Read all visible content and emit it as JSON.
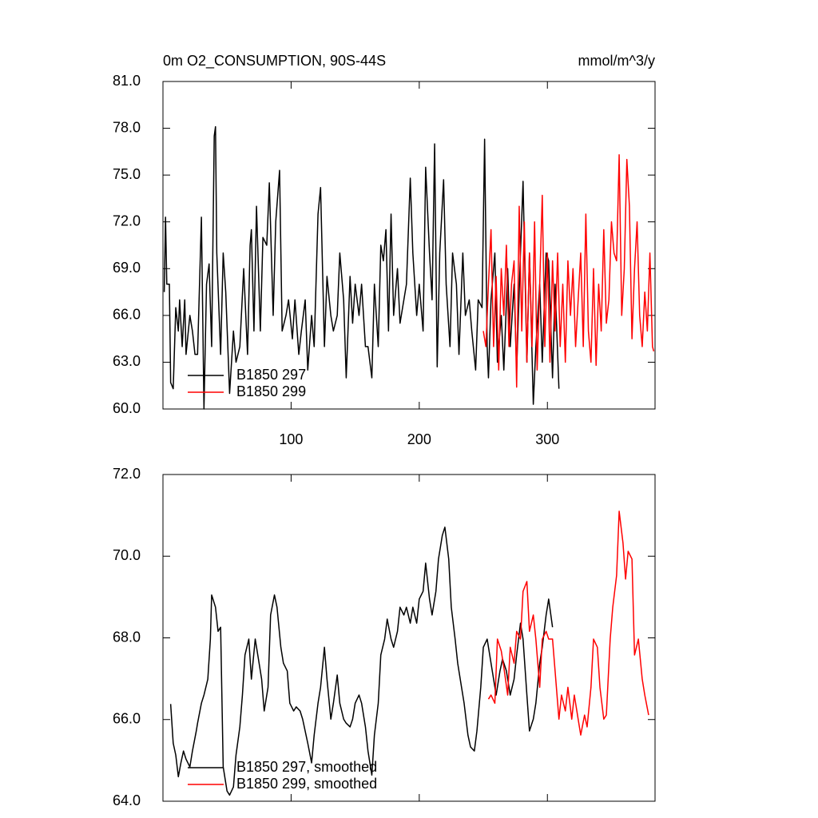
{
  "chart_data": [
    {
      "type": "line",
      "title": "0m O2_CONSUMPTION, 90S-44S",
      "units": "mmol/m^3/y",
      "xlim": [
        0,
        384
      ],
      "xticks": [
        100,
        200,
        300
      ],
      "xtick_labels": true,
      "ylim": [
        60,
        81
      ],
      "yticks": [
        {
          "value": 60,
          "label": "60.0"
        },
        {
          "value": 63,
          "label": "63.0"
        },
        {
          "value": 66,
          "label": "66.0"
        },
        {
          "value": 69,
          "label": "69.0"
        },
        {
          "value": 72,
          "label": "72.0"
        },
        {
          "value": 75,
          "label": "75.0"
        },
        {
          "value": 78,
          "label": "78.0"
        },
        {
          "value": 81,
          "label": "81.0"
        }
      ],
      "legend": "lower left",
      "series": [
        {
          "name": "B1850 297",
          "color": "#000000",
          "x": [
            1,
            2,
            3,
            5,
            6,
            8,
            10,
            12,
            13,
            15,
            17,
            18,
            21,
            23,
            25,
            27,
            30,
            32,
            34,
            36,
            38,
            40,
            41,
            42,
            45,
            47,
            49,
            52,
            55,
            57,
            60,
            63,
            66,
            68,
            69,
            71,
            73,
            76,
            78,
            81,
            83,
            86,
            88,
            91,
            93,
            96,
            98,
            101,
            103,
            106,
            108,
            111,
            113,
            116,
            118,
            121,
            123,
            126,
            128,
            131,
            133,
            136,
            138,
            141,
            143,
            146,
            148,
            150,
            153,
            155,
            158,
            160,
            163,
            165,
            168,
            170,
            172,
            174,
            176,
            178,
            180,
            183,
            185,
            188,
            190,
            193,
            195,
            198,
            200,
            203,
            205,
            208,
            210,
            212,
            214,
            216,
            219,
            221,
            224,
            226,
            229,
            231,
            234,
            236,
            239,
            241,
            244,
            246,
            249,
            251,
            253,
            254,
            256,
            259,
            261,
            264,
            266,
            269,
            271,
            274,
            276,
            279,
            281,
            284,
            286,
            289,
            291,
            294,
            296,
            299,
            301,
            304,
            306,
            309
          ],
          "values": [
            67.5,
            72.3,
            68,
            68,
            61.7,
            61.3,
            66.5,
            65,
            67,
            64,
            67,
            63.5,
            66,
            65,
            63.5,
            63.5,
            72.3,
            60,
            68,
            69.3,
            64,
            77.5,
            78.1,
            70,
            63.5,
            70,
            67.5,
            61,
            65,
            63,
            64,
            69,
            63.5,
            70.5,
            71.5,
            65,
            73,
            65,
            71,
            70.5,
            74.5,
            66,
            72,
            75.3,
            65,
            66,
            67,
            64.5,
            67,
            63.5,
            65,
            67,
            62.5,
            66,
            64,
            72.5,
            74.2,
            64,
            68.5,
            66,
            65,
            66,
            70,
            67,
            62,
            68.5,
            65.5,
            68,
            66,
            68,
            64,
            64,
            62,
            68,
            64,
            70.5,
            69.5,
            71.5,
            65,
            72.5,
            66,
            69,
            65.5,
            67,
            68,
            74.8,
            70,
            66,
            68,
            65,
            75.5,
            70,
            67,
            77,
            62.7,
            70,
            74.7,
            68,
            64,
            70,
            68,
            63.5,
            70,
            66,
            67,
            65,
            62.5,
            67,
            66.5,
            77.3,
            64,
            62,
            67,
            70,
            63,
            66,
            62.5,
            69,
            64,
            68,
            62.5,
            70,
            74.6,
            63,
            70,
            60.3,
            64,
            68,
            63,
            70,
            69.5,
            62,
            68,
            61.3
          ]
        },
        {
          "name": "B1850 299",
          "color": "#ff0000",
          "x": [
            250,
            252,
            254,
            256,
            258,
            260,
            262,
            264,
            266,
            268,
            270,
            272,
            274,
            276,
            278,
            280,
            282,
            284,
            286,
            288,
            290,
            292,
            294,
            296,
            298,
            300,
            302,
            304,
            306,
            308,
            310,
            312,
            314,
            316,
            318,
            320,
            322,
            324,
            326,
            328,
            330,
            332,
            334,
            336,
            338,
            340,
            342,
            344,
            346,
            348,
            350,
            352,
            354,
            356,
            358,
            360,
            362,
            364,
            366,
            368,
            370,
            372,
            374,
            376,
            378,
            380,
            382,
            383
          ],
          "values": [
            65,
            64,
            68,
            71.5,
            64,
            68.5,
            62.5,
            69,
            66,
            70.5,
            64,
            68,
            69.5,
            61.4,
            73,
            65,
            72,
            63,
            70,
            64,
            72,
            62.5,
            68,
            73.7,
            64,
            70,
            63,
            69.5,
            65,
            70,
            64,
            68,
            63,
            69.5,
            66,
            69,
            64,
            67,
            70,
            64,
            72.5,
            65,
            63,
            69,
            62.8,
            68,
            65,
            71.5,
            65.5,
            67,
            72,
            70,
            69.5,
            76.3,
            66,
            69,
            76,
            73,
            64.5,
            69,
            72,
            66,
            64,
            67.5,
            65,
            70,
            64,
            63.7
          ]
        }
      ]
    },
    {
      "type": "line",
      "xlim": [
        0,
        384
      ],
      "xticks": [
        100,
        200,
        300
      ],
      "xtick_labels": false,
      "ylim": [
        64,
        72
      ],
      "yticks": [
        {
          "value": 64,
          "label": "64.0"
        },
        {
          "value": 66,
          "label": "66.0"
        },
        {
          "value": 68,
          "label": "68.0"
        },
        {
          "value": 70,
          "label": "70.0"
        },
        {
          "value": 72,
          "label": "72.0"
        }
      ],
      "legend": "lower left",
      "series": [
        {
          "name": "B1850 297, smoothed",
          "color": "#000000",
          "x": [
            6,
            8,
            10,
            12,
            14,
            16,
            18,
            21,
            23,
            26,
            27,
            30,
            32,
            35,
            37,
            38,
            41,
            43,
            45,
            47,
            50,
            52,
            55,
            57,
            60,
            62,
            64,
            67,
            69,
            72,
            74,
            77,
            79,
            82,
            84,
            87,
            89,
            92,
            94,
            97,
            99,
            102,
            104,
            107,
            109,
            113,
            116,
            118,
            121,
            123,
            126,
            128,
            131,
            133,
            136,
            138,
            141,
            143,
            146,
            148,
            150,
            153,
            155,
            158,
            160,
            163,
            165,
            168,
            170,
            173,
            175,
            178,
            180,
            183,
            185,
            188,
            190,
            193,
            195,
            198,
            200,
            203,
            205,
            208,
            210,
            213,
            215,
            218,
            220,
            223,
            225,
            228,
            230,
            233,
            235,
            238,
            240,
            243,
            245,
            248,
            250,
            253,
            255,
            258,
            260,
            263,
            265,
            268,
            271,
            274,
            276,
            279,
            281,
            284,
            286,
            289,
            291,
            294,
            296,
            299,
            301,
            304
          ],
          "values": [
            66.38,
            65.42,
            65.13,
            64.6,
            64.94,
            65.23,
            65.03,
            64.84,
            65.23,
            65.72,
            65.91,
            66.4,
            66.6,
            66.99,
            67.97,
            69.05,
            68.75,
            68.16,
            68.26,
            64.84,
            64.25,
            64.15,
            64.35,
            65.13,
            65.82,
            66.6,
            67.58,
            67.97,
            66.99,
            67.97,
            67.58,
            66.99,
            66.21,
            66.79,
            68.56,
            69.05,
            68.75,
            67.77,
            67.38,
            67.19,
            66.4,
            66.21,
            66.31,
            66.21,
            66.01,
            65.42,
            64.94,
            65.62,
            66.4,
            66.79,
            67.77,
            66.99,
            66.01,
            66.4,
            67.09,
            66.4,
            66.01,
            65.91,
            65.82,
            66.01,
            66.4,
            66.6,
            66.4,
            65.82,
            65.23,
            64.64,
            65.62,
            66.4,
            67.58,
            67.97,
            68.46,
            67.97,
            67.77,
            68.16,
            68.75,
            68.56,
            68.75,
            68.36,
            68.75,
            68.36,
            68.95,
            69.14,
            69.83,
            68.95,
            68.56,
            69.14,
            69.93,
            70.51,
            70.71,
            69.93,
            68.75,
            67.97,
            67.38,
            66.79,
            66.4,
            65.62,
            65.33,
            65.23,
            65.72,
            66.79,
            67.77,
            67.97,
            67.58,
            66.99,
            66.6,
            67.19,
            67.48,
            67.19,
            66.6,
            66.99,
            67.58,
            68.36,
            67.97,
            66.6,
            65.72,
            66.01,
            66.4,
            67.38,
            67.77,
            68.56,
            68.95,
            68.26
          ]
        },
        {
          "name": "B1850 299, smoothed",
          "color": "#ff0000",
          "x": [
            254,
            256,
            259,
            261,
            264,
            266,
            269,
            271,
            274,
            276,
            279,
            281,
            284,
            286,
            289,
            291,
            294,
            296,
            299,
            301,
            304,
            306,
            309,
            311,
            314,
            316,
            319,
            321,
            324,
            326,
            329,
            331,
            334,
            336,
            339,
            341,
            344,
            346,
            349,
            351,
            354,
            356,
            359,
            361,
            363,
            366,
            368,
            371,
            374,
            376,
            379
          ],
          "values": [
            66.5,
            66.6,
            66.4,
            67.97,
            67.68,
            67.28,
            66.6,
            67.77,
            67.38,
            68.16,
            67.97,
            69.14,
            69.38,
            68.16,
            68.56,
            67.97,
            66.79,
            67.97,
            68.16,
            67.97,
            67.97,
            67.19,
            66.01,
            66.6,
            66.21,
            66.79,
            66.01,
            66.6,
            66.01,
            65.62,
            66.11,
            65.82,
            66.79,
            67.97,
            67.77,
            66.79,
            66.01,
            66.11,
            67.97,
            68.75,
            69.53,
            71.1,
            70.32,
            69.44,
            70.12,
            69.93,
            67.58,
            67.97,
            66.99,
            66.6,
            66.11
          ]
        }
      ]
    }
  ]
}
